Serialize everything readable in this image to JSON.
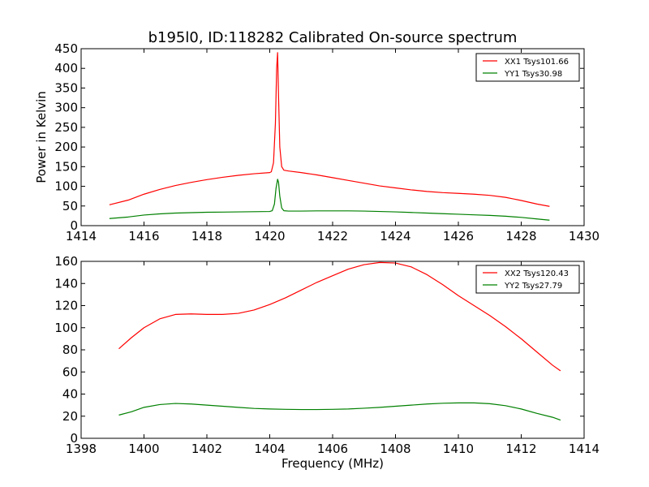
{
  "title": "b195l0, ID:118282 Calibrated On-source spectrum",
  "chart_data": [
    {
      "type": "line",
      "title": "b195l0, ID:118282 Calibrated On-source spectrum",
      "xlabel": "",
      "ylabel": "Power in Kelvin",
      "xlim": [
        1414,
        1430
      ],
      "ylim": [
        0,
        450
      ],
      "xticks": [
        1414,
        1416,
        1418,
        1420,
        1422,
        1424,
        1426,
        1428,
        1430
      ],
      "yticks": [
        0,
        50,
        100,
        150,
        200,
        250,
        300,
        350,
        400,
        450
      ],
      "grid": false,
      "legend_position": "top-right",
      "series": [
        {
          "name": "XX1 Tsys101.66",
          "color": "#ff0000",
          "x": [
            1414.9,
            1415.5,
            1416.0,
            1416.5,
            1417.0,
            1417.5,
            1418.0,
            1418.5,
            1419.0,
            1419.5,
            1420.0,
            1420.05,
            1420.12,
            1420.18,
            1420.22,
            1420.25,
            1420.28,
            1420.32,
            1420.38,
            1420.45,
            1420.6,
            1421.0,
            1421.5,
            1422.0,
            1422.5,
            1423.0,
            1423.5,
            1424.0,
            1424.5,
            1425.0,
            1425.5,
            1426.0,
            1426.5,
            1427.0,
            1427.5,
            1428.0,
            1428.5,
            1428.9
          ],
          "y": [
            53,
            65,
            80,
            92,
            102,
            110,
            117,
            123,
            128,
            132,
            135,
            137,
            160,
            260,
            400,
            440,
            330,
            200,
            150,
            141,
            139,
            135,
            129,
            122,
            115,
            108,
            101,
            96,
            91,
            87,
            84,
            82,
            80,
            77,
            72,
            64,
            55,
            49
          ]
        },
        {
          "name": "YY1 Tsys30.98",
          "color": "#008000",
          "x": [
            1414.9,
            1415.5,
            1416.0,
            1416.5,
            1417.0,
            1417.5,
            1418.0,
            1418.5,
            1419.0,
            1419.5,
            1420.0,
            1420.08,
            1420.15,
            1420.2,
            1420.25,
            1420.28,
            1420.32,
            1420.38,
            1420.45,
            1420.6,
            1421.0,
            1421.5,
            1422.0,
            1422.5,
            1423.0,
            1423.5,
            1424.0,
            1424.5,
            1425.0,
            1425.5,
            1426.0,
            1426.5,
            1427.0,
            1427.5,
            1428.0,
            1428.5,
            1428.9
          ],
          "y": [
            18,
            22,
            27,
            30,
            32,
            33,
            34,
            34.5,
            35,
            35.5,
            36,
            38,
            55,
            95,
            118,
            110,
            75,
            45,
            38,
            37,
            37,
            37.5,
            37.5,
            37.5,
            37,
            36,
            35,
            33.5,
            32,
            30.5,
            29,
            27.5,
            26,
            24,
            21,
            17,
            14
          ]
        }
      ]
    },
    {
      "type": "line",
      "title": "",
      "xlabel": "Frequency (MHz)",
      "ylabel": "",
      "xlim": [
        1398,
        1414
      ],
      "ylim": [
        0,
        160
      ],
      "xticks": [
        1398,
        1400,
        1402,
        1404,
        1406,
        1408,
        1410,
        1412,
        1414
      ],
      "yticks": [
        0,
        20,
        40,
        60,
        80,
        100,
        120,
        140,
        160
      ],
      "grid": false,
      "legend_position": "top-right",
      "series": [
        {
          "name": "XX2 Tsys120.43",
          "color": "#ff0000",
          "x": [
            1399.2,
            1399.6,
            1400.0,
            1400.5,
            1401.0,
            1401.5,
            1402.0,
            1402.5,
            1403.0,
            1403.5,
            1404.0,
            1404.5,
            1405.0,
            1405.5,
            1406.0,
            1406.5,
            1407.0,
            1407.5,
            1408.0,
            1408.5,
            1409.0,
            1409.5,
            1410.0,
            1410.5,
            1411.0,
            1411.5,
            1412.0,
            1412.5,
            1413.0,
            1413.25
          ],
          "y": [
            81,
            91,
            100,
            108,
            112,
            112.5,
            112,
            112,
            113,
            116,
            121,
            127,
            134,
            141,
            147,
            153,
            157,
            159,
            158.5,
            155,
            148,
            139,
            129,
            120,
            111,
            101,
            90,
            78,
            66,
            61
          ]
        },
        {
          "name": "YY2 Tsys27.79",
          "color": "#008000",
          "x": [
            1399.2,
            1399.6,
            1400.0,
            1400.5,
            1401.0,
            1401.5,
            1402.0,
            1402.5,
            1403.0,
            1403.5,
            1404.0,
            1404.5,
            1405.0,
            1405.5,
            1406.0,
            1406.5,
            1407.0,
            1407.5,
            1408.0,
            1408.5,
            1409.0,
            1409.5,
            1410.0,
            1410.5,
            1411.0,
            1411.5,
            1412.0,
            1412.5,
            1413.0,
            1413.25
          ],
          "y": [
            21,
            24,
            28,
            30.5,
            31.5,
            31,
            30,
            29,
            28,
            27,
            26.5,
            26.2,
            26,
            26,
            26.2,
            26.5,
            27.2,
            28,
            29,
            30,
            31,
            31.7,
            32,
            32,
            31.3,
            29.5,
            26.5,
            22.5,
            19,
            16.5
          ]
        }
      ]
    }
  ]
}
